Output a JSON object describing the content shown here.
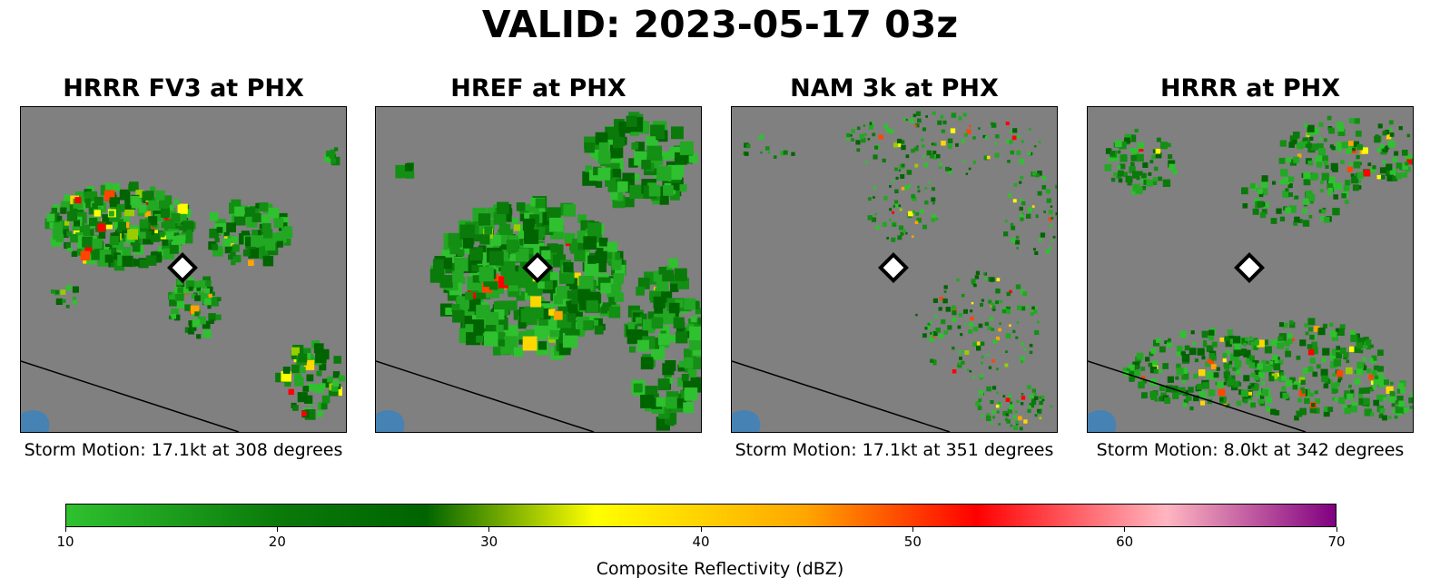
{
  "title": "VALID: 2023-05-17 03z",
  "panels": [
    {
      "title": "HRRR FV3 at PHX",
      "storm_motion": "Storm Motion: 17.1kt at 308 degrees"
    },
    {
      "title": "HREF at PHX",
      "storm_motion": ""
    },
    {
      "title": "NAM 3k at PHX",
      "storm_motion": "Storm Motion: 17.1kt at 351 degrees"
    },
    {
      "title": "HRRR at PHX",
      "storm_motion": "Storm Motion: 8.0kt at 342 degrees"
    }
  ],
  "colorbar": {
    "label": "Composite Reflectivity (dBZ)",
    "ticks": [
      "10",
      "20",
      "30",
      "40",
      "50",
      "60",
      "70"
    ],
    "min": 10,
    "max": 70,
    "stops": [
      {
        "value": 10,
        "color": "#2fc12f"
      },
      {
        "value": 20,
        "color": "#0a7a0a"
      },
      {
        "value": 27,
        "color": "#006400"
      },
      {
        "value": 35,
        "color": "#ffff00"
      },
      {
        "value": 45,
        "color": "#ffa500"
      },
      {
        "value": 53,
        "color": "#ff0000"
      },
      {
        "value": 62,
        "color": "#ffb6c1"
      },
      {
        "value": 70,
        "color": "#800080"
      }
    ]
  },
  "colors": {
    "map_background": "#808080",
    "water": "#4682b4",
    "station_marker_fill": "#ffffff",
    "station_marker_edge": "#000000"
  },
  "station_marker_icon": "diamond-icon"
}
